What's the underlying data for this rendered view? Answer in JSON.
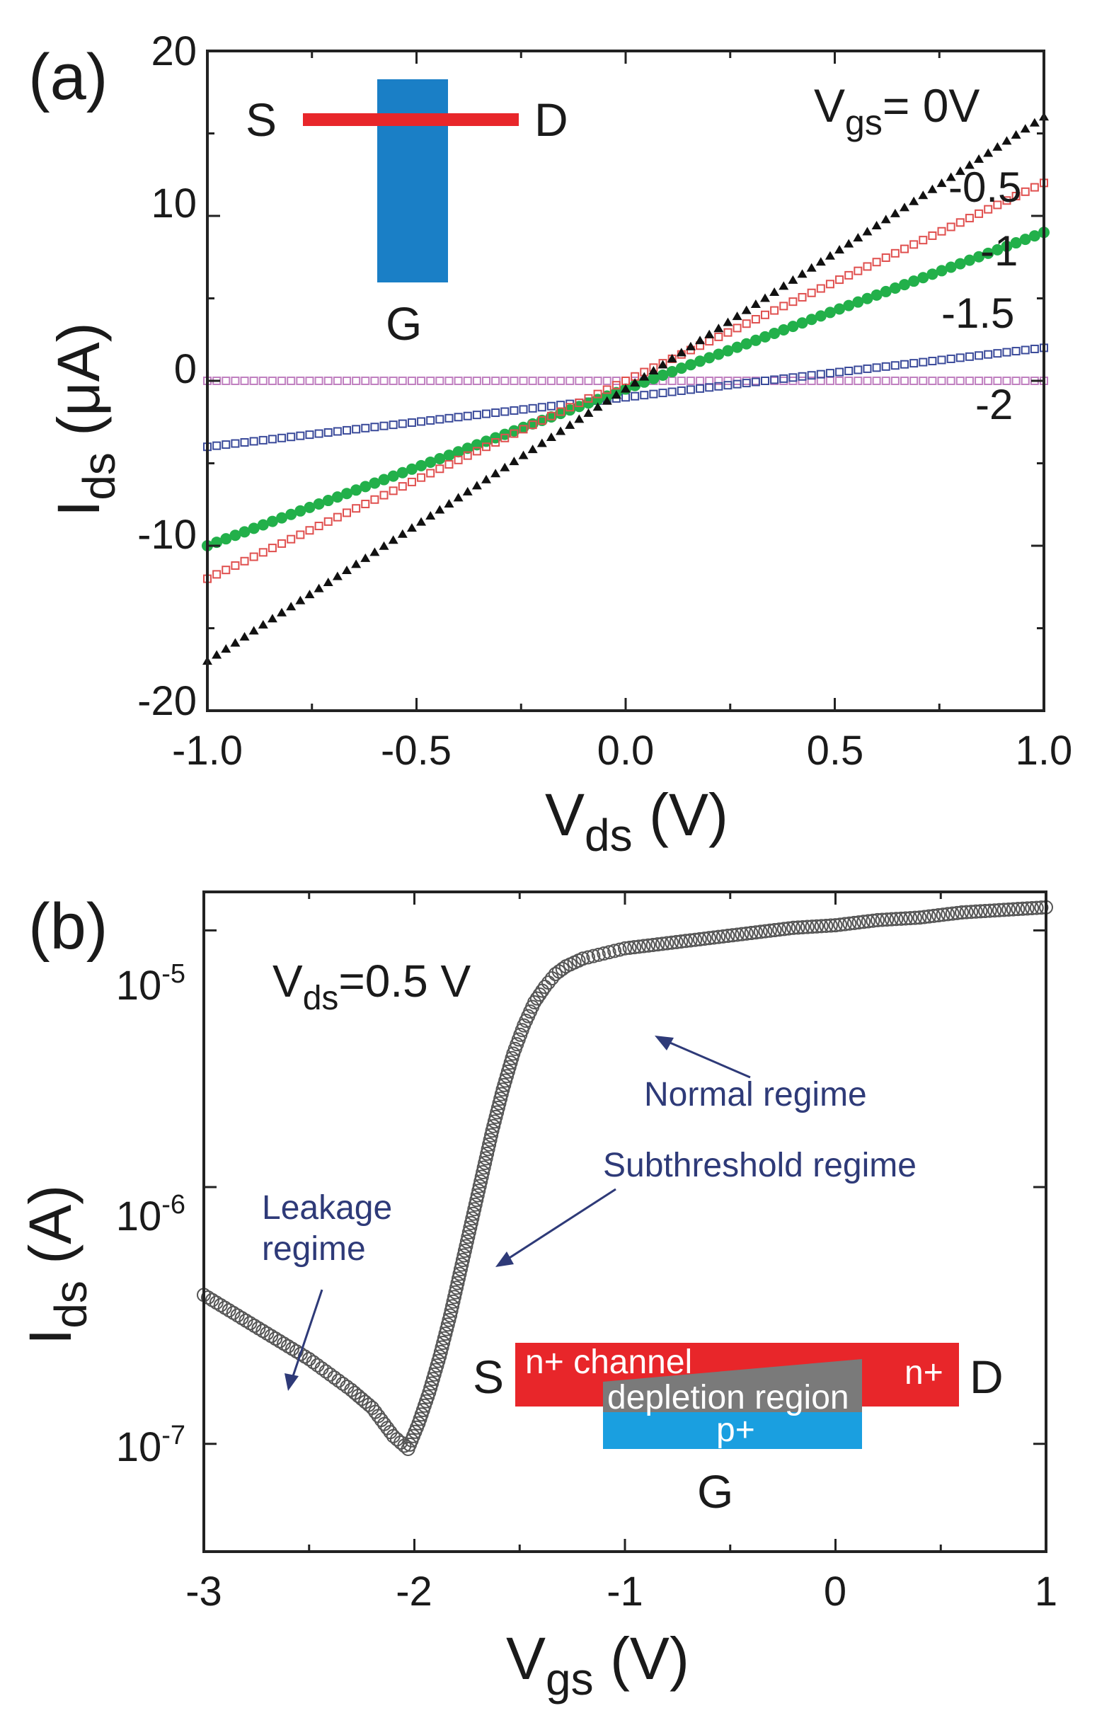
{
  "chart_data": [
    {
      "panel": "(a)",
      "type": "line",
      "xlabel": "V",
      "xlabel_sub": "ds",
      "xlabel_unit": " (V)",
      "ylabel": "I",
      "ylabel_sub": "ds",
      "ylabel_unit": " (μA)",
      "xlim": [
        -1.0,
        1.0
      ],
      "ylim": [
        -20,
        20
      ],
      "xticks": [
        "-1.0",
        "-0.5",
        "0.0",
        "0.5",
        "1.0"
      ],
      "yticks": [
        "20",
        "10",
        "0",
        "-10",
        "-20"
      ],
      "legend_title": "V",
      "legend_title_sub": "gs",
      "legend_title_rest": "= 0V",
      "series": [
        {
          "name": "0V",
          "label": "",
          "color": "#111111",
          "x": [
            -1.0,
            1.0
          ],
          "values": [
            -17,
            16
          ]
        },
        {
          "name": "-0.5",
          "label": "-0.5",
          "color": "#e0504f",
          "x": [
            -1.0,
            1.0
          ],
          "values": [
            -12,
            12
          ]
        },
        {
          "name": "-1",
          "label": "-1",
          "color": "#22b04a",
          "x": [
            -1.0,
            1.0
          ],
          "values": [
            -10,
            9
          ]
        },
        {
          "name": "-1.5",
          "label": "-1.5",
          "color": "#3a4a9a",
          "x": [
            -1.0,
            1.0
          ],
          "values": [
            -4,
            2
          ]
        },
        {
          "name": "-2",
          "label": "-2",
          "color": "#c080c0",
          "x": [
            -1.0,
            1.0
          ],
          "values": [
            0,
            0
          ]
        }
      ],
      "inset": {
        "source": "S",
        "drain": "D",
        "gate": "G",
        "channel_color": "#e8262a",
        "gate_color": "#1a7fc6"
      }
    },
    {
      "panel": "(b)",
      "type": "scatter",
      "xlabel": "V",
      "xlabel_sub": "gs",
      "xlabel_unit": " (V)",
      "ylabel": "I",
      "ylabel_sub": "ds",
      "ylabel_unit": " (A)",
      "xlim": [
        -3,
        1
      ],
      "ylog": true,
      "ylim_log10": [
        -7.42,
        -4.85
      ],
      "xticks": [
        "-3",
        "-2",
        "-1",
        "0",
        "1"
      ],
      "yticks": [
        {
          "base": "10",
          "exp": "-5",
          "log": -5
        },
        {
          "base": "10",
          "exp": "-6",
          "log": -6
        },
        {
          "base": "10",
          "exp": "-7",
          "log": -7
        }
      ],
      "condition": "V",
      "condition_sub": "ds",
      "condition_rest": "=0.5 V",
      "series": [
        {
          "name": "Ids",
          "color": "#555555",
          "x": [
            -3.0,
            -2.9,
            -2.8,
            -2.7,
            -2.6,
            -2.5,
            -2.4,
            -2.3,
            -2.2,
            -2.1,
            -2.03,
            -1.98,
            -1.93,
            -1.88,
            -1.83,
            -1.78,
            -1.73,
            -1.68,
            -1.63,
            -1.58,
            -1.53,
            -1.48,
            -1.43,
            -1.38,
            -1.33,
            -1.28,
            -1.2,
            -1.1,
            -1.0,
            -0.8,
            -0.6,
            -0.4,
            -0.2,
            0.0,
            0.2,
            0.4,
            0.6,
            0.8,
            1.0
          ],
          "log10": [
            -6.42,
            -6.47,
            -6.52,
            -6.57,
            -6.62,
            -6.67,
            -6.73,
            -6.79,
            -6.86,
            -6.97,
            -7.02,
            -6.92,
            -6.8,
            -6.66,
            -6.5,
            -6.32,
            -6.14,
            -5.96,
            -5.78,
            -5.62,
            -5.48,
            -5.37,
            -5.28,
            -5.22,
            -5.17,
            -5.14,
            -5.11,
            -5.09,
            -5.07,
            -5.05,
            -5.03,
            -5.01,
            -4.99,
            -4.98,
            -4.96,
            -4.95,
            -4.93,
            -4.92,
            -4.91
          ]
        }
      ],
      "annotations": [
        {
          "text": "Normal regime"
        },
        {
          "text": "Subthreshold regime"
        },
        {
          "text_line1": "Leakage",
          "text_line2": "regime"
        }
      ],
      "inset": {
        "source": "S",
        "drain": "D",
        "gate": "G",
        "channel_label": "n+ channel",
        "drain_label": "n+",
        "depletion_label": "depletion region",
        "gate_label": "p+",
        "channel_color": "#e8262a",
        "depletion_color": "#7a7a7a",
        "gate_color": "#1a9fe0"
      }
    }
  ]
}
